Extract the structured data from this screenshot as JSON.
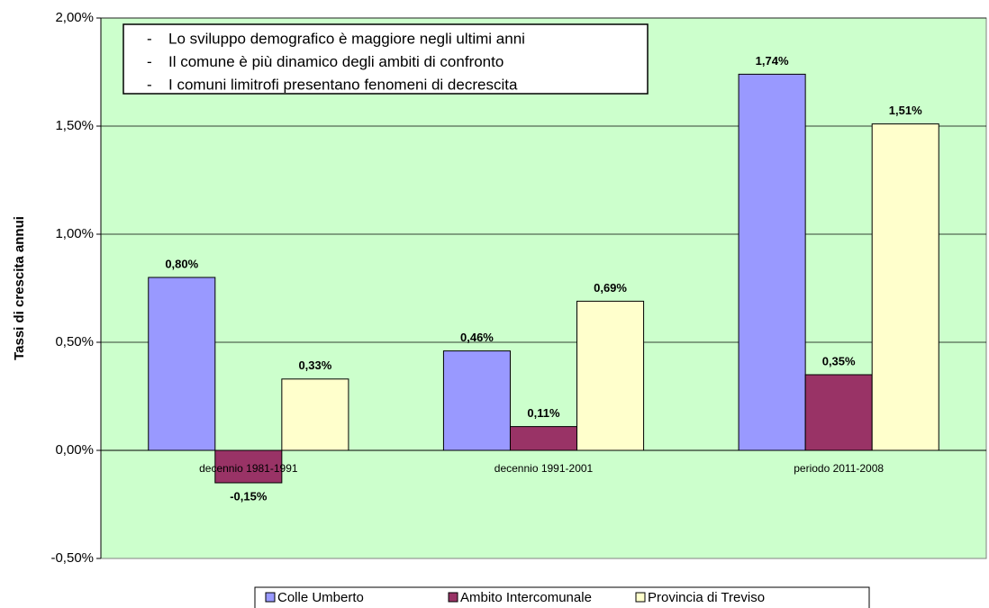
{
  "chart_data": {
    "type": "bar",
    "y_label": "Tassi di crescita annui",
    "annotations": [
      "Lo sviluppo demografico è maggiore negli ultimi anni",
      "Il comune è più dinamico degli ambiti di confronto",
      "I comuni limitrofi presentano fenomeni di decrescita"
    ],
    "categories": [
      "decennio 1981-1991",
      "decennio 1991-2001",
      "periodo 2011-2008"
    ],
    "series": [
      {
        "name": "Colle Umberto",
        "color": "#9999ff",
        "values": [
          0.8,
          0.46,
          1.74
        ],
        "value_labels": [
          "0,80%",
          "0,46%",
          "1,74%"
        ]
      },
      {
        "name": "Ambito Intercomunale",
        "color": "#993366",
        "values": [
          -0.15,
          0.11,
          0.35
        ],
        "value_labels": [
          "-0,15%",
          "0,11%",
          "0,35%"
        ]
      },
      {
        "name": "Provincia di Treviso",
        "color": "#ffffcc",
        "values": [
          0.33,
          0.69,
          1.51
        ],
        "value_labels": [
          "0,33%",
          "0,69%",
          "1,51%"
        ]
      }
    ],
    "ylim": [
      -0.5,
      2.0
    ],
    "yticks": [
      {
        "value": -0.5,
        "label": "-0,50%"
      },
      {
        "value": 0,
        "label": "0,00%"
      },
      {
        "value": 0.5,
        "label": "0,50%"
      },
      {
        "value": 1.0,
        "label": "1,00%"
      },
      {
        "value": 1.5,
        "label": "1,50%"
      },
      {
        "value": 2.0,
        "label": "2,00%"
      }
    ],
    "grid": true,
    "legend": "bottom"
  }
}
